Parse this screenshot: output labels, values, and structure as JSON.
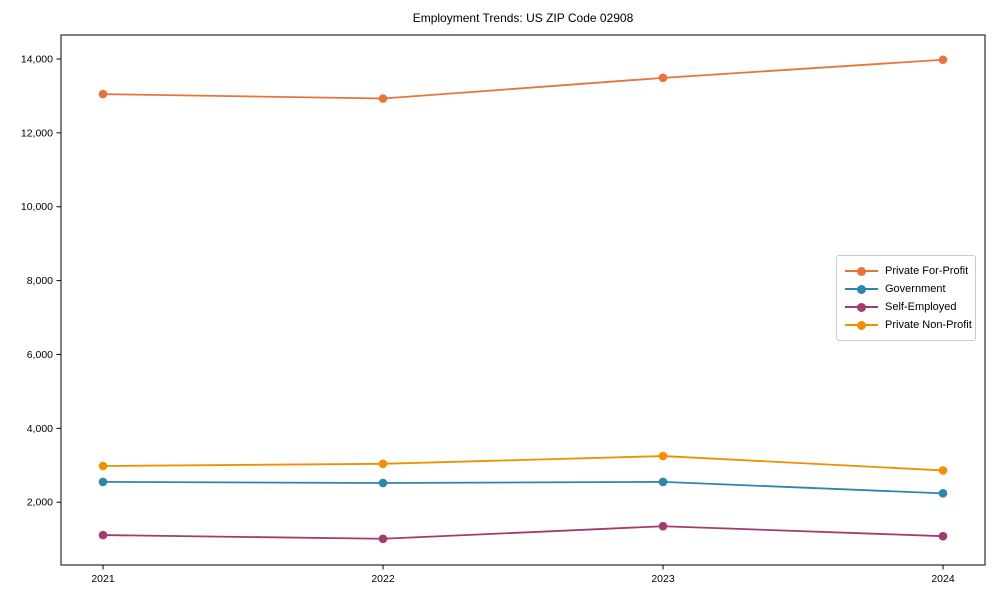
{
  "chart_data": {
    "type": "line",
    "title": "Employment Trends: US ZIP Code 02908",
    "x": [
      2021,
      2022,
      2023,
      2024
    ],
    "x_tick_labels": [
      "2021",
      "2022",
      "2023",
      "2024"
    ],
    "y_ticks": {
      "values": [
        2000,
        4000,
        6000,
        8000,
        10000,
        12000,
        14000
      ],
      "labels": [
        "2,000",
        "4,000",
        "6,000",
        "8,000",
        "10,000",
        "12,000",
        "14,000"
      ]
    },
    "xlim": [
      2020.85,
      2024.15
    ],
    "ylim": [
      300,
      14650
    ],
    "grid": false,
    "legend_position": "center right",
    "series": [
      {
        "name": "Private For-Profit",
        "color": "#E8743B",
        "values": [
          13050,
          12930,
          13490,
          13980
        ]
      },
      {
        "name": "Government",
        "color": "#2E86AB",
        "values": [
          2550,
          2520,
          2550,
          2240
        ]
      },
      {
        "name": "Self-Employed",
        "color": "#A23B72",
        "values": [
          1110,
          1010,
          1350,
          1080
        ]
      },
      {
        "name": "Private Non-Profit",
        "color": "#F18F01",
        "values": [
          2980,
          3040,
          3250,
          2860
        ]
      }
    ]
  }
}
